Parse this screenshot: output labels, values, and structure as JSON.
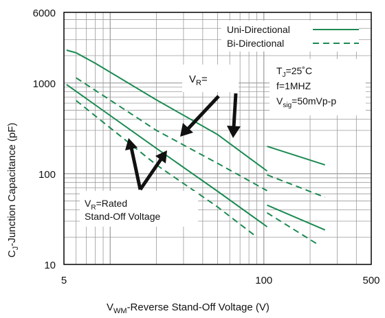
{
  "chart_data": {
    "type": "line",
    "xlabel": {
      "main": "V",
      "sub": "WM",
      "rest": "-Reverse Stand-Off Voltage (V)"
    },
    "ylabel": {
      "main": "C",
      "sub": "J",
      "rest": "-Junction Capacitance (pF)"
    },
    "x_scale": "log",
    "y_scale": "log",
    "xlim": [
      5,
      500
    ],
    "ylim": [
      10,
      6000
    ],
    "x_ticks": [
      {
        "value": 5,
        "label": "5"
      },
      {
        "value": 100,
        "label": "100"
      },
      {
        "value": 500,
        "label": "500"
      }
    ],
    "y_ticks": [
      {
        "value": 10,
        "label": "10"
      },
      {
        "value": 100,
        "label": "100"
      },
      {
        "value": 1000,
        "label": "1000"
      },
      {
        "value": 6000,
        "label": "6000"
      }
    ],
    "grid": true,
    "legend_position": "top-right",
    "series_styles": [
      {
        "name": "Uni-Directional",
        "color": "#1a8a52",
        "dash": "solid"
      },
      {
        "name": "Bi-Directional",
        "color": "#1a8a52",
        "dash": "dashed"
      }
    ],
    "curves": [
      {
        "group": "V_R=0 uni",
        "style": "solid",
        "points": [
          [
            5.2,
            2300
          ],
          [
            6,
            2150
          ],
          [
            8,
            1650
          ],
          [
            20,
            650
          ],
          [
            50,
            270
          ],
          [
            105,
            107
          ]
        ]
      },
      {
        "group": "V_R=0 uni",
        "style": "solid",
        "points": [
          [
            105,
            200
          ],
          [
            250,
            125
          ]
        ]
      },
      {
        "group": "V_R=0 bi",
        "style": "dashed",
        "points": [
          [
            6,
            1140
          ],
          [
            20,
            300
          ],
          [
            50,
            130
          ],
          [
            105,
            65
          ]
        ]
      },
      {
        "group": "V_R=0 bi",
        "style": "dashed",
        "points": [
          [
            105,
            97
          ],
          [
            250,
            55
          ]
        ]
      },
      {
        "group": "V_R=Rated uni",
        "style": "solid",
        "points": [
          [
            5.2,
            960
          ],
          [
            20,
            190
          ],
          [
            50,
            64
          ],
          [
            105,
            26
          ]
        ]
      },
      {
        "group": "V_R=Rated uni",
        "style": "solid",
        "points": [
          [
            105,
            45
          ],
          [
            250,
            24
          ]
        ]
      },
      {
        "group": "V_R=Rated bi",
        "style": "dashed",
        "points": [
          [
            6,
            640
          ],
          [
            20,
            125
          ],
          [
            50,
            43
          ],
          [
            90,
            20
          ]
        ]
      },
      {
        "group": "V_R=Rated bi",
        "style": "dashed",
        "points": [
          [
            105,
            37
          ],
          [
            220,
            17
          ]
        ]
      }
    ],
    "annotations": {
      "conditions": {
        "tj_main": "T",
        "tj_sub": "J",
        "tj_rest": "=25˚C",
        "freq": "f=1MHZ",
        "vsig_main": "V",
        "vsig_sub": "sig",
        "vsig_rest": "=50mVp-p"
      },
      "vr_zero": {
        "main": "V",
        "sub": "R",
        "rest": "="
      },
      "vr_rated": {
        "main": "V",
        "sub": "R",
        "rest": "=Rated",
        "line2": "Stand-Off Voltage"
      }
    },
    "colors": {
      "curve": "#1a8a52",
      "grid": "#9a9a9a",
      "arrow": "#111111"
    }
  }
}
